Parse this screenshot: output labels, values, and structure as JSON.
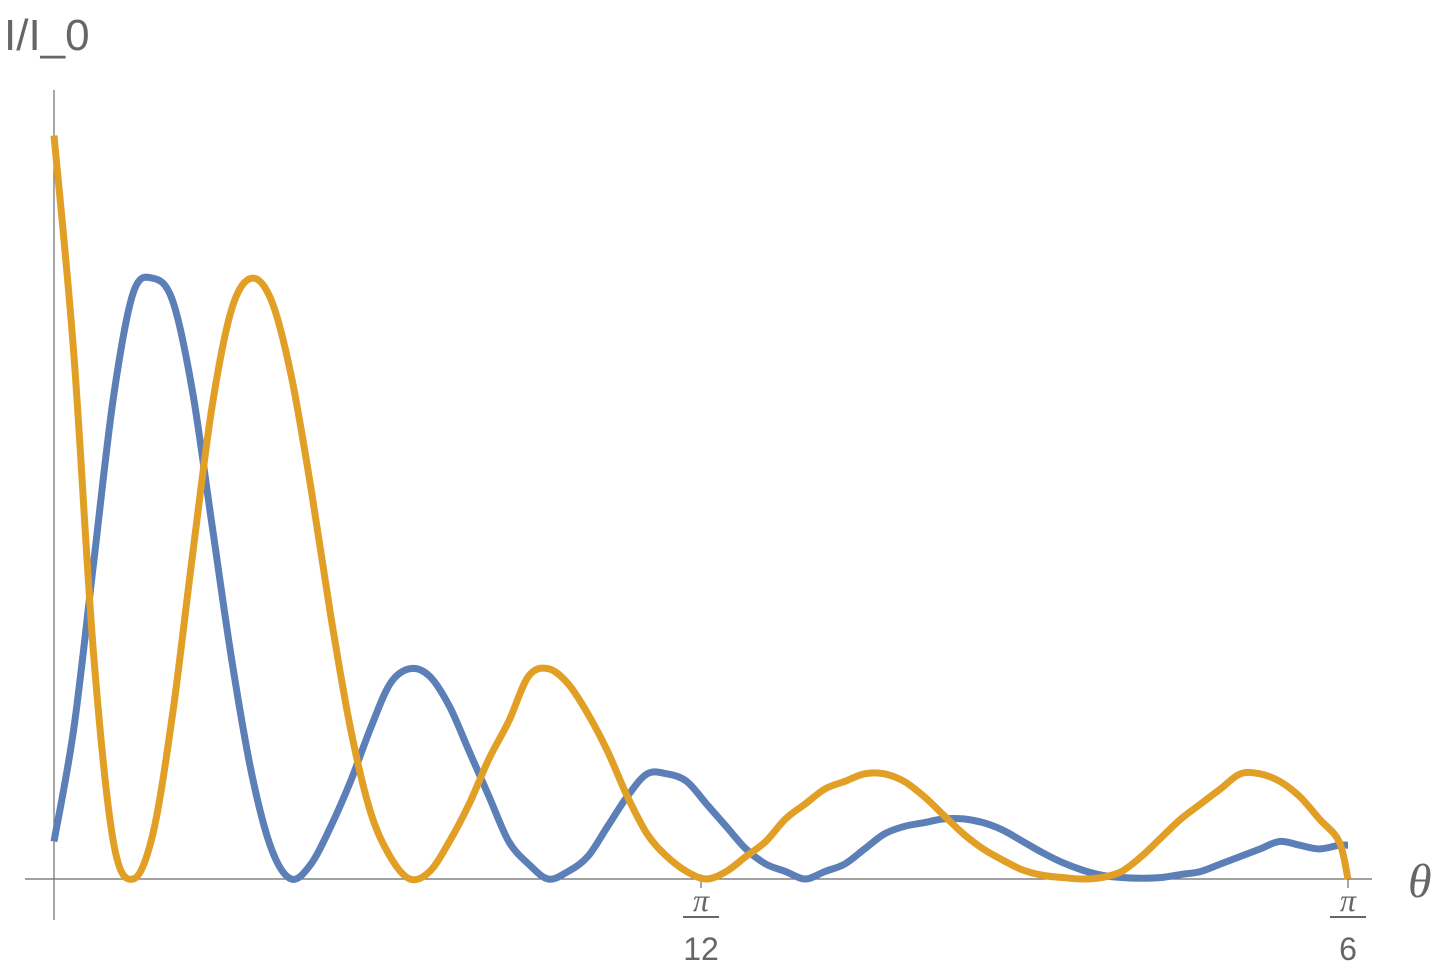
{
  "chart_data": {
    "type": "line",
    "xlabel": "θ",
    "ylabel": "I/I_0",
    "xlim": [
      0,
      0.5236
    ],
    "ylim": [
      0,
      1.0
    ],
    "grid": false,
    "x_ticks": [
      {
        "value": 0.2618,
        "numerator": "π",
        "denominator": "12"
      },
      {
        "value": 0.5236,
        "numerator": "π",
        "denominator": "6"
      }
    ],
    "series": [
      {
        "color": "#5b7fb6",
        "x": [
          0.0,
          0.008,
          0.016,
          0.024,
          0.032,
          0.04,
          0.048,
          0.056,
          0.064,
          0.072,
          0.08,
          0.088,
          0.096,
          0.104,
          0.112,
          0.12,
          0.128,
          0.136,
          0.144,
          0.152,
          0.16,
          0.168,
          0.176,
          0.184,
          0.192,
          0.2,
          0.208,
          0.216,
          0.224,
          0.232,
          0.24,
          0.248,
          0.256,
          0.264,
          0.272,
          0.28,
          0.288,
          0.296,
          0.304,
          0.312,
          0.32,
          0.328,
          0.336,
          0.344,
          0.352,
          0.36,
          0.368,
          0.376,
          0.384,
          0.392,
          0.4,
          0.408,
          0.416,
          0.424,
          0.432,
          0.44,
          0.448,
          0.456,
          0.464,
          0.472,
          0.48,
          0.488,
          0.496,
          0.504,
          0.512,
          0.52,
          0.5236
        ],
        "y": [
          0.05,
          0.2,
          0.42,
          0.64,
          0.78,
          0.8,
          0.77,
          0.65,
          0.47,
          0.29,
          0.14,
          0.04,
          0.0,
          0.02,
          0.07,
          0.13,
          0.2,
          0.26,
          0.28,
          0.27,
          0.23,
          0.17,
          0.11,
          0.05,
          0.02,
          0.0,
          0.01,
          0.03,
          0.07,
          0.11,
          0.14,
          0.14,
          0.13,
          0.1,
          0.07,
          0.04,
          0.02,
          0.01,
          0.0,
          0.01,
          0.02,
          0.04,
          0.06,
          0.07,
          0.075,
          0.08,
          0.08,
          0.075,
          0.065,
          0.05,
          0.035,
          0.022,
          0.012,
          0.005,
          0.002,
          0.001,
          0.002,
          0.006,
          0.01,
          0.02,
          0.03,
          0.04,
          0.05,
          0.045,
          0.04,
          0.045,
          0.045
        ]
      },
      {
        "color": "#e29f26",
        "x": [
          0.0,
          0.008,
          0.016,
          0.024,
          0.032,
          0.04,
          0.048,
          0.056,
          0.064,
          0.072,
          0.08,
          0.088,
          0.096,
          0.104,
          0.112,
          0.12,
          0.128,
          0.136,
          0.144,
          0.152,
          0.16,
          0.168,
          0.176,
          0.184,
          0.192,
          0.2,
          0.208,
          0.216,
          0.224,
          0.232,
          0.24,
          0.248,
          0.256,
          0.264,
          0.272,
          0.28,
          0.288,
          0.296,
          0.304,
          0.312,
          0.32,
          0.328,
          0.336,
          0.344,
          0.352,
          0.36,
          0.368,
          0.376,
          0.384,
          0.392,
          0.4,
          0.408,
          0.416,
          0.424,
          0.432,
          0.44,
          0.448,
          0.456,
          0.464,
          0.472,
          0.48,
          0.488,
          0.496,
          0.504,
          0.512,
          0.52,
          0.5236
        ],
        "y": [
          0.99,
          0.7,
          0.3,
          0.05,
          0.0,
          0.06,
          0.22,
          0.43,
          0.63,
          0.76,
          0.8,
          0.77,
          0.67,
          0.52,
          0.35,
          0.2,
          0.09,
          0.03,
          0.0,
          0.01,
          0.05,
          0.1,
          0.16,
          0.21,
          0.27,
          0.28,
          0.26,
          0.22,
          0.17,
          0.11,
          0.06,
          0.03,
          0.01,
          0.0,
          0.01,
          0.03,
          0.05,
          0.08,
          0.1,
          0.12,
          0.13,
          0.14,
          0.14,
          0.13,
          0.11,
          0.085,
          0.06,
          0.04,
          0.025,
          0.012,
          0.005,
          0.002,
          0.0,
          0.002,
          0.01,
          0.03,
          0.055,
          0.08,
          0.1,
          0.12,
          0.14,
          0.14,
          0.13,
          0.11,
          0.08,
          0.05,
          0.0
        ]
      }
    ]
  }
}
